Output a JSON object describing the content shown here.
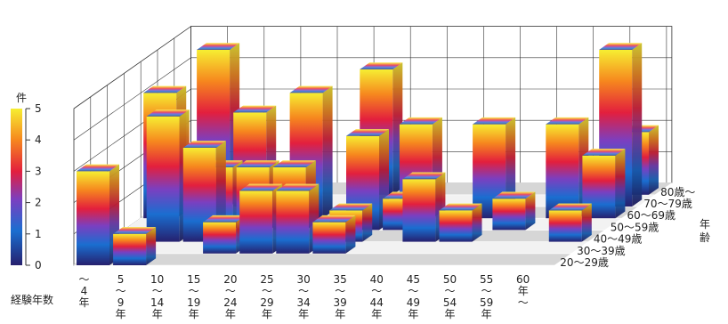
{
  "chart_data": {
    "type": "bar",
    "subtype": "3d-bar",
    "title": "",
    "unit_label": "件",
    "xlabel": "経験年数",
    "zlabel": "年齢",
    "ylim": [
      0,
      5
    ],
    "yticks": [
      "0",
      "1",
      "2",
      "3",
      "4",
      "5"
    ],
    "x_categories": [
      "〜4年",
      "5〜9年",
      "10〜14年",
      "15〜19年",
      "20〜24年",
      "25〜29年",
      "30〜34年",
      "35〜39年",
      "40〜44年",
      "45〜49年",
      "50〜54年",
      "55〜59年",
      "60年〜"
    ],
    "x_label_stacks": [
      [
        "〜",
        "4",
        "年"
      ],
      [
        "5",
        "〜",
        "9",
        "年"
      ],
      [
        "10",
        "〜",
        "14",
        "年"
      ],
      [
        "15",
        "〜",
        "19",
        "年"
      ],
      [
        "20",
        "〜",
        "24",
        "年"
      ],
      [
        "25",
        "〜",
        "29",
        "年"
      ],
      [
        "30",
        "〜",
        "34",
        "年"
      ],
      [
        "35",
        "〜",
        "39",
        "年"
      ],
      [
        "40",
        "〜",
        "44",
        "年"
      ],
      [
        "45",
        "〜",
        "49",
        "年"
      ],
      [
        "50",
        "〜",
        "54",
        "年"
      ],
      [
        "55",
        "〜",
        "59",
        "年"
      ],
      [
        "60",
        "年",
        "〜"
      ]
    ],
    "z_categories": [
      "20〜29歳",
      "30〜39歳",
      "40〜49歳",
      "50〜59歳",
      "60〜69歳",
      "70〜79歳",
      "80歳〜"
    ],
    "zlabel_chars": [
      "年",
      "齢"
    ],
    "color_scale": [
      "#3a1f7a",
      "#1f4fbf",
      "#1e88d6",
      "#7b3fc0",
      "#e0203a",
      "#f07a1e",
      "#f5d21e",
      "#f5f23a"
    ],
    "series": [
      {
        "name": "20〜29歳",
        "values": [
          3,
          1,
          0,
          0,
          0,
          0,
          0,
          0,
          0,
          0,
          0,
          0,
          0
        ]
      },
      {
        "name": "30〜39歳",
        "values": [
          0,
          0,
          0,
          1,
          2,
          2,
          1,
          0,
          0,
          0,
          0,
          0,
          0
        ]
      },
      {
        "name": "40〜49歳",
        "values": [
          0,
          4,
          3,
          0,
          0,
          0,
          1,
          0,
          2,
          1,
          0,
          0,
          1
        ]
      },
      {
        "name": "50〜59歳",
        "values": [
          0,
          0,
          2,
          2,
          2,
          0,
          3,
          1,
          0,
          0,
          1,
          0,
          0
        ]
      },
      {
        "name": "60〜69歳",
        "values": [
          4,
          0,
          0,
          0,
          4,
          0,
          0,
          3,
          0,
          3,
          0,
          3,
          2
        ]
      },
      {
        "name": "70〜79歳",
        "values": [
          0,
          5,
          3,
          0,
          0,
          0,
          0,
          0,
          0,
          0,
          0,
          0,
          5
        ]
      },
      {
        "name": "80歳〜",
        "values": [
          0,
          0,
          0,
          0,
          0,
          4,
          0,
          0,
          0,
          0,
          0,
          0,
          2
        ]
      }
    ]
  }
}
